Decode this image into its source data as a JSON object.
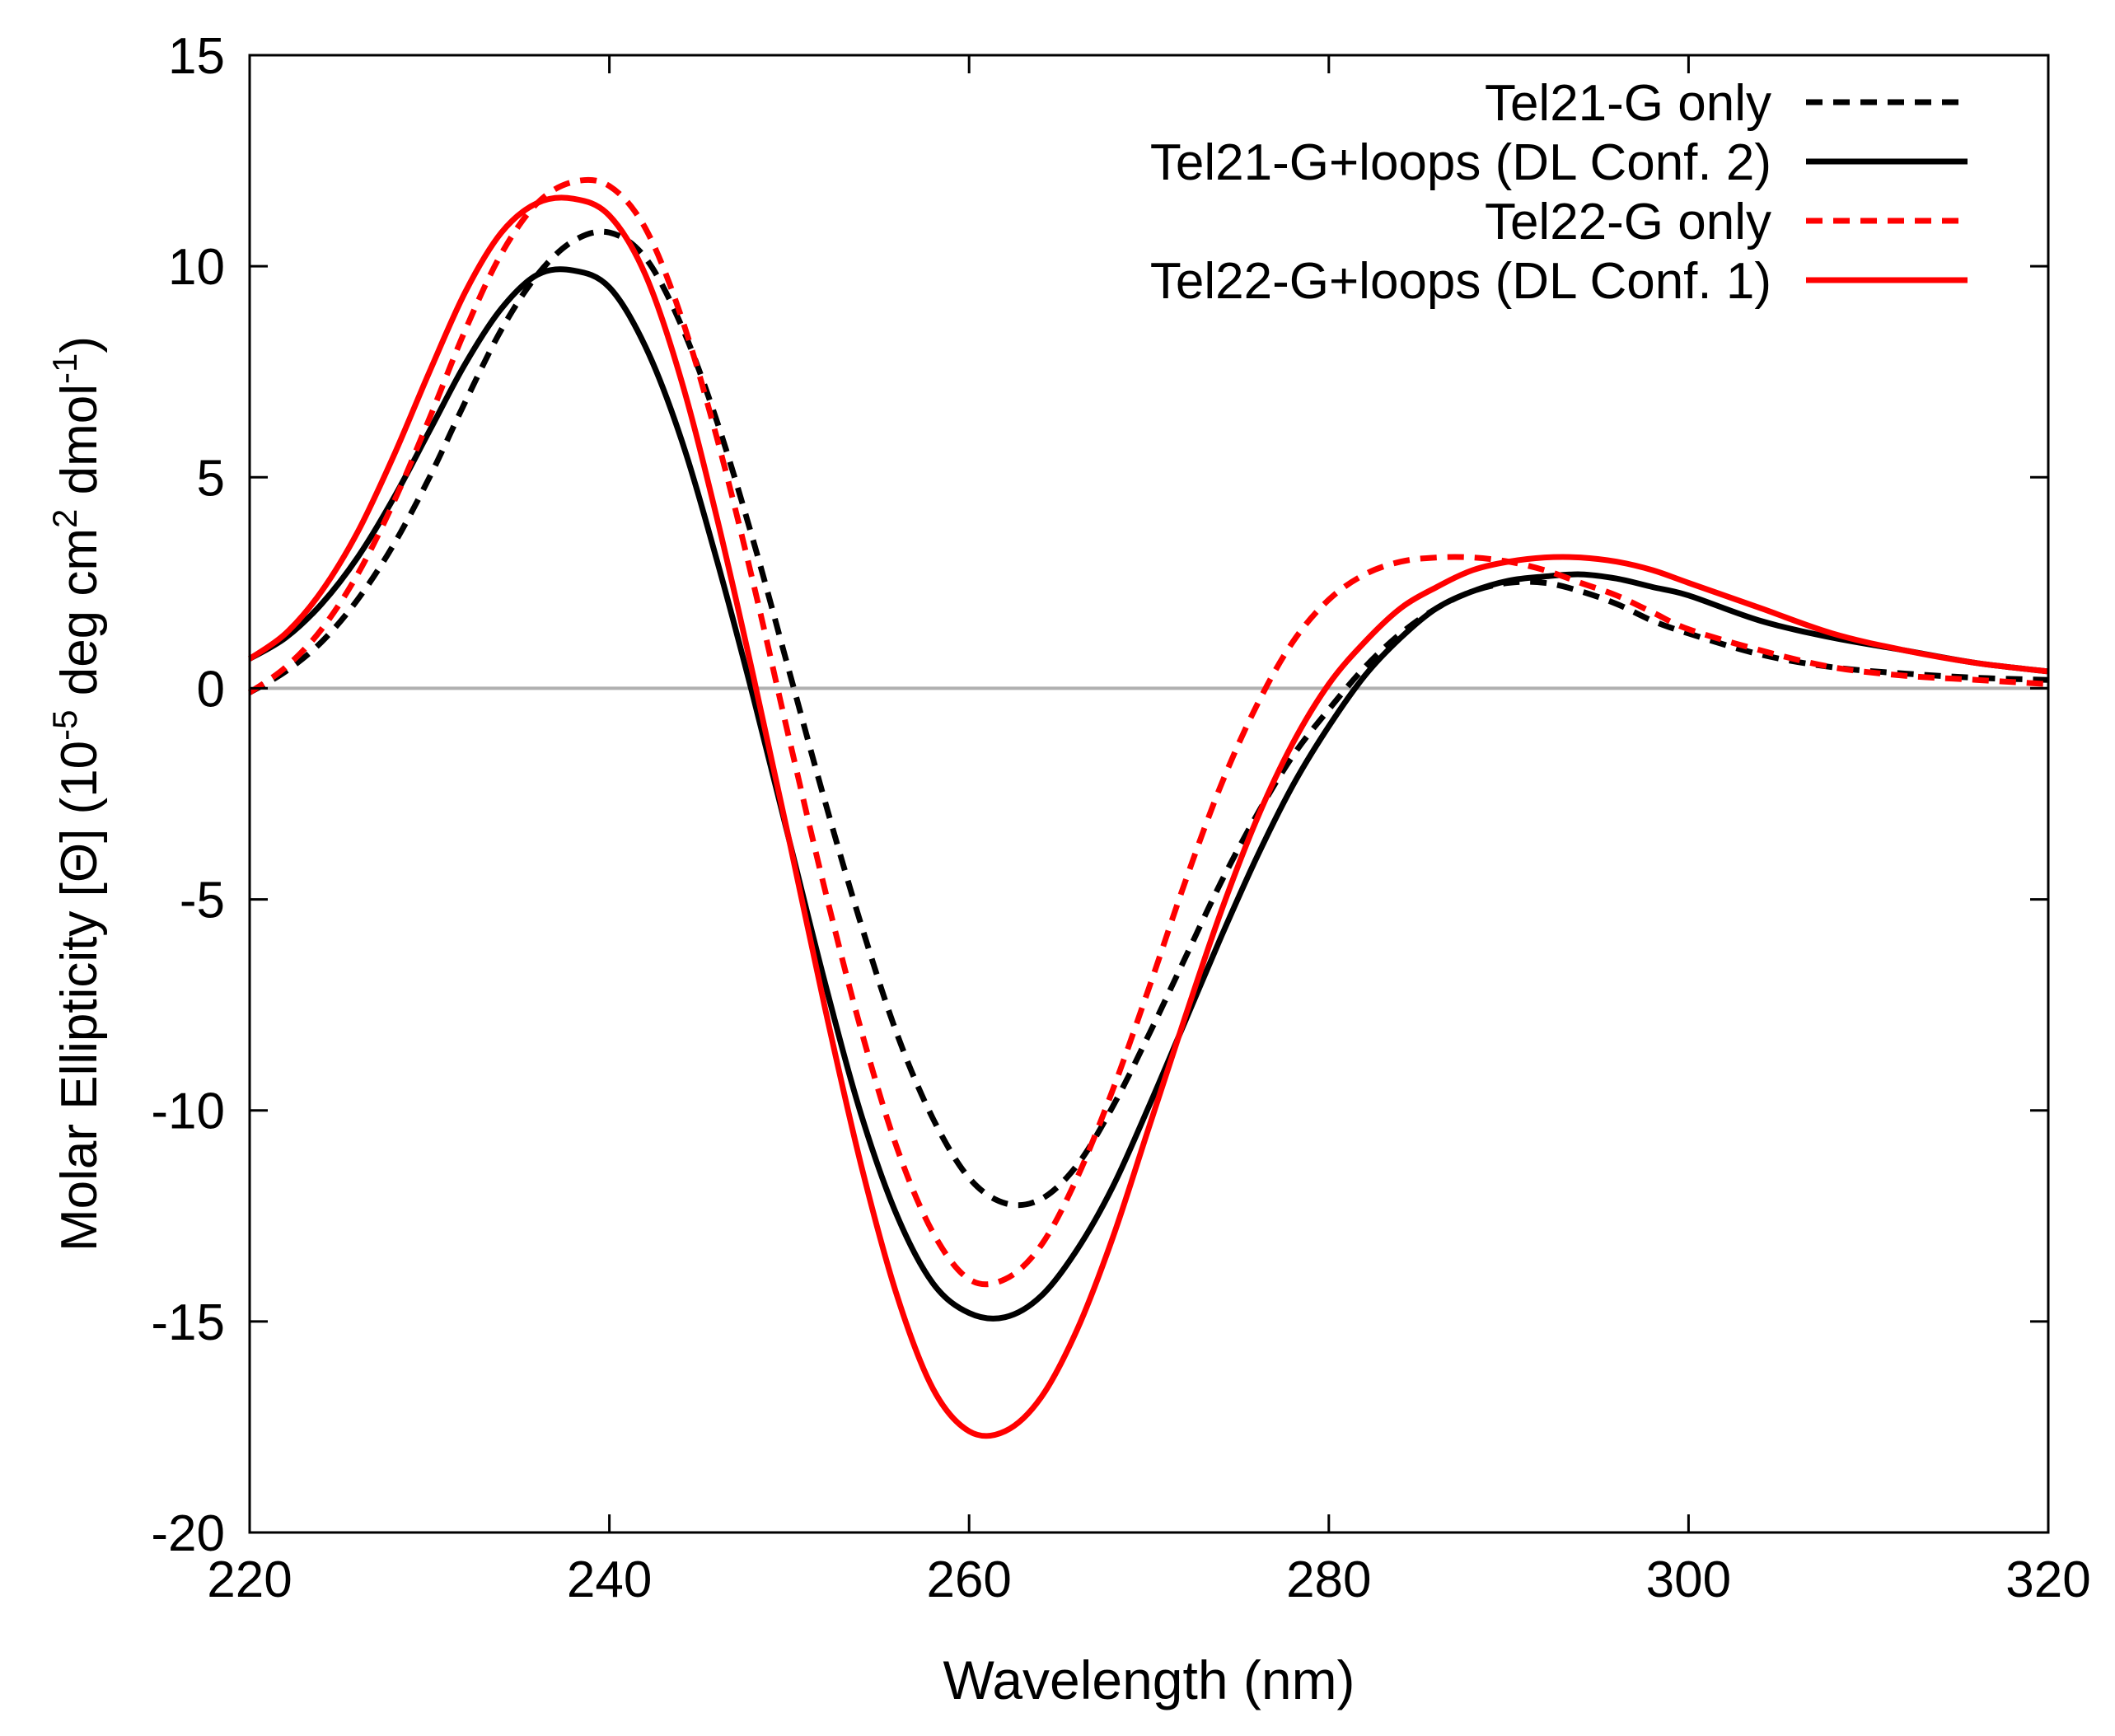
{
  "chart_data": {
    "type": "line",
    "title": "",
    "xlabel": "Wavelength (nm)",
    "ylabel": {
      "main": "Molar Ellipticity [Θ] (10",
      "exp1": "-5",
      "mid": " deg cm",
      "exp2": "2",
      "mid2": " dmol",
      "exp3": "-1",
      "end": ")"
    },
    "xlim": [
      220,
      320
    ],
    "ylim": [
      -20,
      15
    ],
    "xticks": [
      {
        "value": 220,
        "label": "220"
      },
      {
        "value": 240,
        "label": "240"
      },
      {
        "value": 260,
        "label": "260"
      },
      {
        "value": 280,
        "label": "280"
      },
      {
        "value": 300,
        "label": "300"
      },
      {
        "value": 320,
        "label": "320"
      }
    ],
    "yticks": [
      {
        "value": -20,
        "label": "-20"
      },
      {
        "value": -15,
        "label": "-15"
      },
      {
        "value": -10,
        "label": "-10"
      },
      {
        "value": -5,
        "label": "-5"
      },
      {
        "value": 0,
        "label": "0"
      },
      {
        "value": 5,
        "label": "5"
      },
      {
        "value": 10,
        "label": "10"
      },
      {
        "value": 15,
        "label": "15"
      }
    ],
    "zero_line_color": "#b0b0b0",
    "legend_position": "top-right",
    "series": [
      {
        "name": "Tel21-G only",
        "color": "#000000",
        "dash": "dashed",
        "x": [
          220,
          222,
          224,
          226,
          228,
          230,
          232,
          234,
          236,
          238,
          240,
          242,
          244,
          246,
          248,
          250,
          252,
          254,
          256,
          258,
          260,
          262,
          264,
          266,
          268,
          270,
          272,
          274,
          276,
          278,
          280,
          282,
          284,
          286,
          288,
          290,
          292,
          294,
          296,
          298,
          300,
          304,
          308,
          312,
          316,
          320
        ],
        "y": [
          -0.1,
          0.4,
          1.1,
          2.1,
          3.4,
          5.0,
          6.8,
          8.5,
          9.8,
          10.6,
          10.8,
          10.2,
          8.6,
          6.3,
          3.5,
          0.4,
          -2.7,
          -5.6,
          -8.2,
          -10.2,
          -11.6,
          -12.2,
          -12.1,
          -11.3,
          -9.9,
          -8.2,
          -6.4,
          -4.6,
          -3.0,
          -1.6,
          -0.5,
          0.5,
          1.3,
          1.9,
          2.3,
          2.5,
          2.5,
          2.3,
          2.0,
          1.6,
          1.3,
          0.8,
          0.5,
          0.35,
          0.25,
          0.2
        ]
      },
      {
        "name": "Tel21-G+loops (DL Conf. 2)",
        "color": "#000000",
        "dash": "solid",
        "x": [
          220,
          222,
          224,
          226,
          228,
          230,
          232,
          234,
          236,
          238,
          240,
          242,
          244,
          246,
          248,
          250,
          252,
          254,
          256,
          258,
          260,
          262,
          264,
          266,
          268,
          270,
          272,
          274,
          276,
          278,
          280,
          282,
          284,
          286,
          288,
          290,
          292,
          294,
          296,
          298,
          300,
          304,
          308,
          312,
          316,
          320
        ],
        "y": [
          0.7,
          1.2,
          2.0,
          3.1,
          4.5,
          6.1,
          7.7,
          9.0,
          9.8,
          9.9,
          9.5,
          8.1,
          5.9,
          3.0,
          -0.2,
          -3.6,
          -7.0,
          -10.1,
          -12.5,
          -14.1,
          -14.8,
          -14.9,
          -14.4,
          -13.3,
          -11.8,
          -9.9,
          -7.9,
          -5.9,
          -4.0,
          -2.3,
          -0.9,
          0.3,
          1.2,
          1.9,
          2.3,
          2.55,
          2.65,
          2.7,
          2.6,
          2.4,
          2.2,
          1.6,
          1.2,
          0.9,
          0.6,
          0.4
        ]
      },
      {
        "name": "Tel22-G only",
        "color": "#ff0000",
        "dash": "dashed",
        "x": [
          220,
          222,
          224,
          226,
          228,
          230,
          232,
          234,
          236,
          238,
          240,
          242,
          244,
          246,
          248,
          250,
          252,
          254,
          256,
          258,
          260,
          262,
          264,
          266,
          268,
          270,
          272,
          274,
          276,
          278,
          280,
          282,
          284,
          286,
          288,
          290,
          292,
          294,
          296,
          298,
          300,
          304,
          308,
          312,
          316,
          320
        ],
        "y": [
          -0.1,
          0.5,
          1.4,
          2.7,
          4.4,
          6.4,
          8.5,
          10.3,
          11.5,
          12.0,
          11.9,
          10.9,
          8.8,
          5.9,
          2.5,
          -1.2,
          -4.8,
          -8.1,
          -10.9,
          -12.9,
          -14.0,
          -14.0,
          -13.2,
          -11.6,
          -9.5,
          -7.1,
          -4.6,
          -2.3,
          -0.4,
          1.1,
          2.1,
          2.7,
          3.0,
          3.1,
          3.1,
          3.0,
          2.8,
          2.5,
          2.2,
          1.8,
          1.4,
          0.9,
          0.5,
          0.3,
          0.2,
          0.1
        ]
      },
      {
        "name": "Tel22-G+loops (DL Conf. 1)",
        "color": "#ff0000",
        "dash": "solid",
        "x": [
          220,
          222,
          224,
          226,
          228,
          230,
          232,
          234,
          236,
          238,
          240,
          242,
          244,
          246,
          248,
          250,
          252,
          254,
          256,
          258,
          260,
          262,
          264,
          266,
          268,
          270,
          272,
          274,
          276,
          278,
          280,
          282,
          284,
          286,
          288,
          290,
          292,
          294,
          296,
          298,
          300,
          304,
          308,
          312,
          316,
          320
        ],
        "y": [
          0.7,
          1.3,
          2.3,
          3.7,
          5.5,
          7.5,
          9.4,
          10.8,
          11.5,
          11.6,
          11.2,
          9.8,
          7.3,
          4.0,
          0.3,
          -3.6,
          -7.6,
          -11.3,
          -14.4,
          -16.6,
          -17.6,
          -17.6,
          -16.8,
          -15.2,
          -13.0,
          -10.4,
          -7.8,
          -5.3,
          -3.1,
          -1.3,
          0.1,
          1.1,
          1.9,
          2.4,
          2.8,
          3.0,
          3.1,
          3.1,
          3.0,
          2.8,
          2.5,
          1.9,
          1.3,
          0.9,
          0.6,
          0.4
        ]
      }
    ]
  }
}
